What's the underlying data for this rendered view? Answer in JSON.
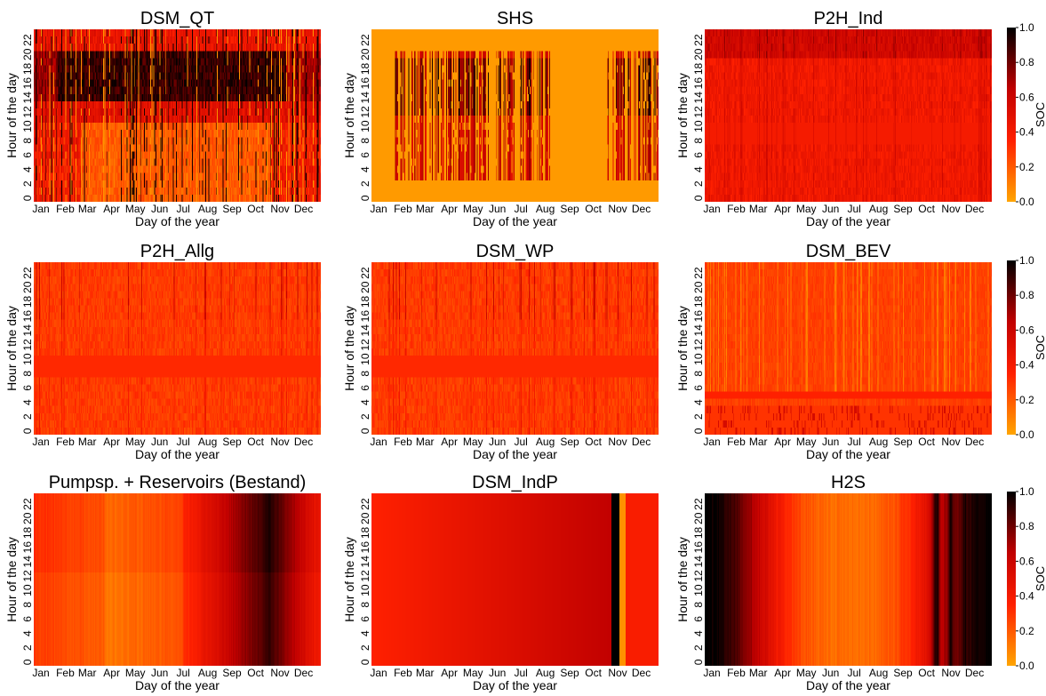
{
  "colormap": {
    "stops": [
      "#ffa500",
      "#ff2000",
      "#c00000",
      "#000000"
    ],
    "positions": [
      0,
      0.35,
      0.65,
      1
    ]
  },
  "axes_text": {
    "xlabel": "Day of the year",
    "ylabel": "Hour of the day",
    "colorbar_label": "SOC",
    "month_ticks": [
      "Jan",
      "Feb",
      "Mar",
      "Apr",
      "May",
      "Jun",
      "Jul",
      "Aug",
      "Sep",
      "Oct",
      "Nov",
      "Dec"
    ],
    "hour_ticks": [
      "0",
      "2",
      "4",
      "6",
      "8",
      "10",
      "12",
      "14",
      "16",
      "18",
      "20",
      "22"
    ],
    "colorbar_ticks": [
      "0.0",
      "0.2",
      "0.4",
      "0.6",
      "0.8",
      "1.0"
    ]
  },
  "chart_data": [
    {
      "type": "heatmap",
      "title": "DSM_QT",
      "pattern": "dsm_qt",
      "xlabel": "Day of the year",
      "ylabel": "Hour of the day",
      "x": "day 1-365",
      "y": "hour 0-23",
      "value_range": [
        0,
        1
      ],
      "colorbar": false
    },
    {
      "type": "heatmap",
      "title": "SHS",
      "pattern": "shs",
      "xlabel": "Day of the year",
      "ylabel": "Hour of the day",
      "x": "day 1-365",
      "y": "hour 0-23",
      "value_range": [
        0,
        1
      ],
      "colorbar": false
    },
    {
      "type": "heatmap",
      "title": "P2H_Ind",
      "pattern": "p2h_ind",
      "xlabel": "Day of the year",
      "ylabel": "Hour of the day",
      "x": "day 1-365",
      "y": "hour 0-23",
      "value_range": [
        0,
        1
      ],
      "colorbar": true,
      "colorbar_label": "SOC"
    },
    {
      "type": "heatmap",
      "title": "P2H_Allg",
      "pattern": "p2h_allg",
      "xlabel": "Day of the year",
      "ylabel": "Hour of the day",
      "x": "day 1-365",
      "y": "hour 0-23",
      "value_range": [
        0,
        1
      ],
      "colorbar": false
    },
    {
      "type": "heatmap",
      "title": "DSM_WP",
      "pattern": "dsm_wp",
      "xlabel": "Day of the year",
      "ylabel": "Hour of the day",
      "x": "day 1-365",
      "y": "hour 0-23",
      "value_range": [
        0,
        1
      ],
      "colorbar": false
    },
    {
      "type": "heatmap",
      "title": "DSM_BEV",
      "pattern": "dsm_bev",
      "xlabel": "Day of the year",
      "ylabel": "Hour of the day",
      "x": "day 1-365",
      "y": "hour 0-23",
      "value_range": [
        0,
        1
      ],
      "colorbar": true,
      "colorbar_label": "SOC"
    },
    {
      "type": "heatmap",
      "title": "Pumpsp. + Reservoirs (Bestand)",
      "pattern": "pumpsp",
      "xlabel": "Day of the year",
      "ylabel": "Hour of the day",
      "x": "day 1-365",
      "y": "hour 0-23",
      "value_range": [
        0,
        1
      ],
      "colorbar": false
    },
    {
      "type": "heatmap",
      "title": "DSM_IndP",
      "pattern": "dsm_indp",
      "xlabel": "Day of the year",
      "ylabel": "Hour of the day",
      "x": "day 1-365",
      "y": "hour 0-23",
      "value_range": [
        0,
        1
      ],
      "colorbar": false
    },
    {
      "type": "heatmap",
      "title": "H2S",
      "pattern": "h2s",
      "xlabel": "Day of the year",
      "ylabel": "Hour of the day",
      "x": "day 1-365",
      "y": "hour 0-23",
      "value_range": [
        0,
        1
      ],
      "colorbar": true,
      "colorbar_label": "SOC"
    }
  ]
}
